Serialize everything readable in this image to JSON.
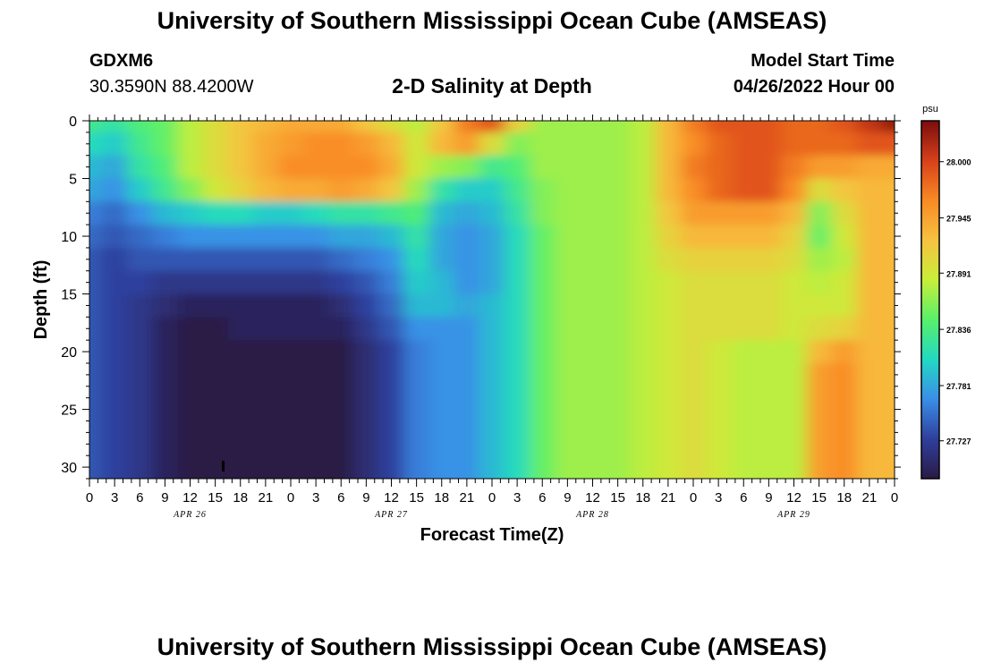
{
  "header": {
    "title": "University of Southern Mississippi Ocean Cube (AMSEAS)",
    "station_id": "GDXM6",
    "station_coords": "30.3590N  88.4200W",
    "plot_title": "2-D Salinity at Depth",
    "model_start_label": "Model Start Time",
    "model_start_value": "04/26/2022 Hour 00"
  },
  "footer": {
    "title": "University of Southern Mississippi Ocean Cube (AMSEAS)"
  },
  "colors": {
    "ramp": [
      "#2a1a45",
      "#2f3f9c",
      "#3a8ee8",
      "#22d9c3",
      "#58f06a",
      "#c8ee3a",
      "#f7c240",
      "#f98a24",
      "#d7401a",
      "#7a0d0d"
    ]
  },
  "chart_data": {
    "type": "heatmap",
    "title": "2-D Salinity at Depth",
    "xlabel": "Forecast Time(Z)",
    "ylabel": "Depth (ft)",
    "xlim": [
      0,
      96
    ],
    "ylim": [
      0,
      31
    ],
    "x_tick_labels": [
      "0",
      "3",
      "6",
      "9",
      "12",
      "15",
      "18",
      "21",
      "0",
      "3",
      "6",
      "9",
      "12",
      "15",
      "18",
      "21",
      "0",
      "3",
      "6",
      "9",
      "12",
      "15",
      "18",
      "21",
      "0",
      "3",
      "6",
      "9",
      "12",
      "15",
      "18",
      "21",
      "0"
    ],
    "y_ticks": [
      0,
      5,
      10,
      15,
      20,
      25,
      30
    ],
    "day_labels": [
      {
        "label": "APR 26",
        "hour": 12
      },
      {
        "label": "APR 27",
        "hour": 36
      },
      {
        "label": "APR 28",
        "hour": 60
      },
      {
        "label": "APR 29",
        "hour": 84
      }
    ],
    "colorbar": {
      "unit": "psu",
      "min": 27.69,
      "max": 28.04,
      "tick_values": [
        27.727,
        27.781,
        27.836,
        27.891,
        27.945,
        28.0
      ],
      "tick_labels": [
        "27.727",
        "27.781",
        "27.836",
        "27.891",
        "27.945",
        "28.000"
      ]
    },
    "depths_ft": [
      0,
      2,
      4,
      6,
      8,
      10,
      12,
      14,
      16,
      18,
      20,
      22,
      24,
      26,
      28,
      30,
      31
    ],
    "hours": [
      0,
      3,
      6,
      9,
      12,
      15,
      18,
      21,
      24,
      27,
      30,
      33,
      36,
      39,
      42,
      45,
      48,
      51,
      54,
      57,
      60,
      63,
      66,
      69,
      72,
      75,
      78,
      81,
      84,
      87,
      90,
      93,
      96
    ],
    "salinity_psu": [
      [
        27.83,
        27.82,
        27.84,
        27.85,
        27.88,
        27.9,
        27.92,
        27.93,
        27.94,
        27.94,
        27.94,
        27.92,
        27.9,
        27.88,
        27.92,
        27.97,
        27.99,
        27.91,
        27.87,
        27.87,
        27.87,
        27.87,
        27.88,
        27.93,
        27.97,
        27.99,
        27.99,
        27.99,
        27.98,
        27.98,
        27.99,
        28.01,
        28.03
      ],
      [
        27.81,
        27.8,
        27.83,
        27.85,
        27.88,
        27.9,
        27.92,
        27.94,
        27.95,
        27.96,
        27.96,
        27.95,
        27.93,
        27.89,
        27.93,
        27.95,
        27.9,
        27.86,
        27.87,
        27.87,
        27.87,
        27.87,
        27.88,
        27.93,
        27.96,
        27.98,
        27.99,
        27.99,
        27.98,
        27.98,
        27.98,
        27.99,
        27.99
      ],
      [
        27.79,
        27.78,
        27.82,
        27.84,
        27.88,
        27.9,
        27.92,
        27.94,
        27.96,
        27.96,
        27.96,
        27.96,
        27.94,
        27.89,
        27.87,
        27.86,
        27.83,
        27.84,
        27.87,
        27.87,
        27.87,
        27.87,
        27.88,
        27.93,
        27.97,
        27.98,
        27.99,
        27.99,
        27.97,
        27.95,
        27.95,
        27.94,
        27.94
      ],
      [
        27.78,
        27.77,
        27.8,
        27.83,
        27.86,
        27.89,
        27.91,
        27.93,
        27.94,
        27.94,
        27.95,
        27.94,
        27.92,
        27.87,
        27.82,
        27.8,
        27.8,
        27.83,
        27.86,
        27.87,
        27.87,
        27.87,
        27.88,
        27.93,
        27.96,
        27.98,
        27.99,
        27.99,
        27.96,
        27.9,
        27.92,
        27.93,
        27.93
      ],
      [
        27.76,
        27.75,
        27.77,
        27.79,
        27.8,
        27.81,
        27.81,
        27.8,
        27.8,
        27.81,
        27.82,
        27.82,
        27.83,
        27.84,
        27.79,
        27.78,
        27.79,
        27.82,
        27.86,
        27.87,
        27.87,
        27.87,
        27.88,
        27.92,
        27.95,
        27.95,
        27.95,
        27.95,
        27.93,
        27.86,
        27.9,
        27.93,
        27.93
      ],
      [
        27.75,
        27.74,
        27.75,
        27.76,
        27.77,
        27.77,
        27.77,
        27.77,
        27.77,
        27.77,
        27.78,
        27.78,
        27.79,
        27.82,
        27.78,
        27.77,
        27.78,
        27.81,
        27.85,
        27.87,
        27.87,
        27.87,
        27.88,
        27.91,
        27.93,
        27.93,
        27.93,
        27.93,
        27.91,
        27.85,
        27.89,
        27.93,
        27.93
      ],
      [
        27.74,
        27.73,
        27.74,
        27.74,
        27.74,
        27.74,
        27.74,
        27.74,
        27.74,
        27.74,
        27.75,
        27.76,
        27.77,
        27.81,
        27.78,
        27.77,
        27.78,
        27.81,
        27.85,
        27.87,
        27.87,
        27.87,
        27.88,
        27.9,
        27.91,
        27.91,
        27.91,
        27.91,
        27.9,
        27.87,
        27.88,
        27.93,
        27.93
      ],
      [
        27.74,
        27.73,
        27.73,
        27.72,
        27.72,
        27.72,
        27.72,
        27.72,
        27.72,
        27.72,
        27.73,
        27.74,
        27.76,
        27.8,
        27.79,
        27.77,
        27.78,
        27.81,
        27.85,
        27.87,
        27.87,
        27.87,
        27.88,
        27.89,
        27.9,
        27.9,
        27.9,
        27.9,
        27.89,
        27.88,
        27.89,
        27.93,
        27.93
      ],
      [
        27.74,
        27.73,
        27.72,
        27.71,
        27.7,
        27.7,
        27.7,
        27.7,
        27.7,
        27.7,
        27.71,
        27.73,
        27.75,
        27.79,
        27.79,
        27.78,
        27.79,
        27.81,
        27.85,
        27.87,
        27.87,
        27.87,
        27.88,
        27.89,
        27.9,
        27.9,
        27.9,
        27.9,
        27.89,
        27.89,
        27.89,
        27.93,
        27.93
      ],
      [
        27.74,
        27.73,
        27.72,
        27.7,
        27.69,
        27.69,
        27.7,
        27.7,
        27.7,
        27.7,
        27.7,
        27.72,
        27.74,
        27.77,
        27.77,
        27.77,
        27.79,
        27.81,
        27.85,
        27.87,
        27.87,
        27.87,
        27.88,
        27.89,
        27.9,
        27.9,
        27.9,
        27.9,
        27.89,
        27.9,
        27.91,
        27.93,
        27.93
      ],
      [
        27.74,
        27.73,
        27.72,
        27.7,
        27.69,
        27.69,
        27.69,
        27.69,
        27.69,
        27.69,
        27.69,
        27.71,
        27.73,
        27.76,
        27.77,
        27.77,
        27.79,
        27.81,
        27.85,
        27.87,
        27.87,
        27.87,
        27.88,
        27.89,
        27.9,
        27.89,
        27.88,
        27.88,
        27.88,
        27.93,
        27.95,
        27.93,
        27.93
      ],
      [
        27.74,
        27.73,
        27.72,
        27.7,
        27.69,
        27.69,
        27.69,
        27.69,
        27.69,
        27.69,
        27.69,
        27.71,
        27.73,
        27.76,
        27.77,
        27.77,
        27.79,
        27.81,
        27.85,
        27.87,
        27.87,
        27.87,
        27.88,
        27.89,
        27.9,
        27.89,
        27.88,
        27.88,
        27.88,
        27.95,
        27.96,
        27.93,
        27.93
      ],
      [
        27.74,
        27.73,
        27.72,
        27.7,
        27.69,
        27.69,
        27.69,
        27.69,
        27.69,
        27.69,
        27.69,
        27.71,
        27.73,
        27.76,
        27.77,
        27.77,
        27.79,
        27.81,
        27.85,
        27.87,
        27.87,
        27.87,
        27.88,
        27.89,
        27.9,
        27.89,
        27.88,
        27.88,
        27.88,
        27.95,
        27.96,
        27.93,
        27.93
      ],
      [
        27.74,
        27.73,
        27.72,
        27.7,
        27.69,
        27.69,
        27.69,
        27.69,
        27.69,
        27.69,
        27.69,
        27.71,
        27.73,
        27.76,
        27.77,
        27.77,
        27.79,
        27.81,
        27.85,
        27.87,
        27.87,
        27.87,
        27.88,
        27.89,
        27.9,
        27.89,
        27.88,
        27.88,
        27.88,
        27.95,
        27.96,
        27.93,
        27.93
      ],
      [
        27.74,
        27.73,
        27.72,
        27.7,
        27.69,
        27.69,
        27.69,
        27.69,
        27.69,
        27.69,
        27.69,
        27.71,
        27.73,
        27.76,
        27.77,
        27.77,
        27.79,
        27.81,
        27.85,
        27.87,
        27.87,
        27.87,
        27.88,
        27.89,
        27.9,
        27.89,
        27.88,
        27.88,
        27.88,
        27.95,
        27.96,
        27.93,
        27.93
      ],
      [
        27.74,
        27.73,
        27.72,
        27.7,
        27.69,
        27.69,
        27.69,
        27.69,
        27.69,
        27.69,
        27.69,
        27.71,
        27.73,
        27.76,
        27.77,
        27.77,
        27.79,
        27.81,
        27.85,
        27.87,
        27.87,
        27.87,
        27.88,
        27.89,
        27.9,
        27.89,
        27.88,
        27.88,
        27.88,
        27.95,
        27.96,
        27.93,
        27.93
      ],
      [
        27.74,
        27.73,
        27.72,
        27.7,
        27.69,
        27.69,
        27.69,
        27.69,
        27.69,
        27.69,
        27.69,
        27.71,
        27.73,
        27.76,
        27.77,
        27.77,
        27.79,
        27.81,
        27.85,
        27.87,
        27.87,
        27.87,
        27.88,
        27.89,
        27.9,
        27.89,
        27.88,
        27.88,
        27.88,
        27.95,
        27.96,
        27.93,
        27.93
      ]
    ]
  }
}
